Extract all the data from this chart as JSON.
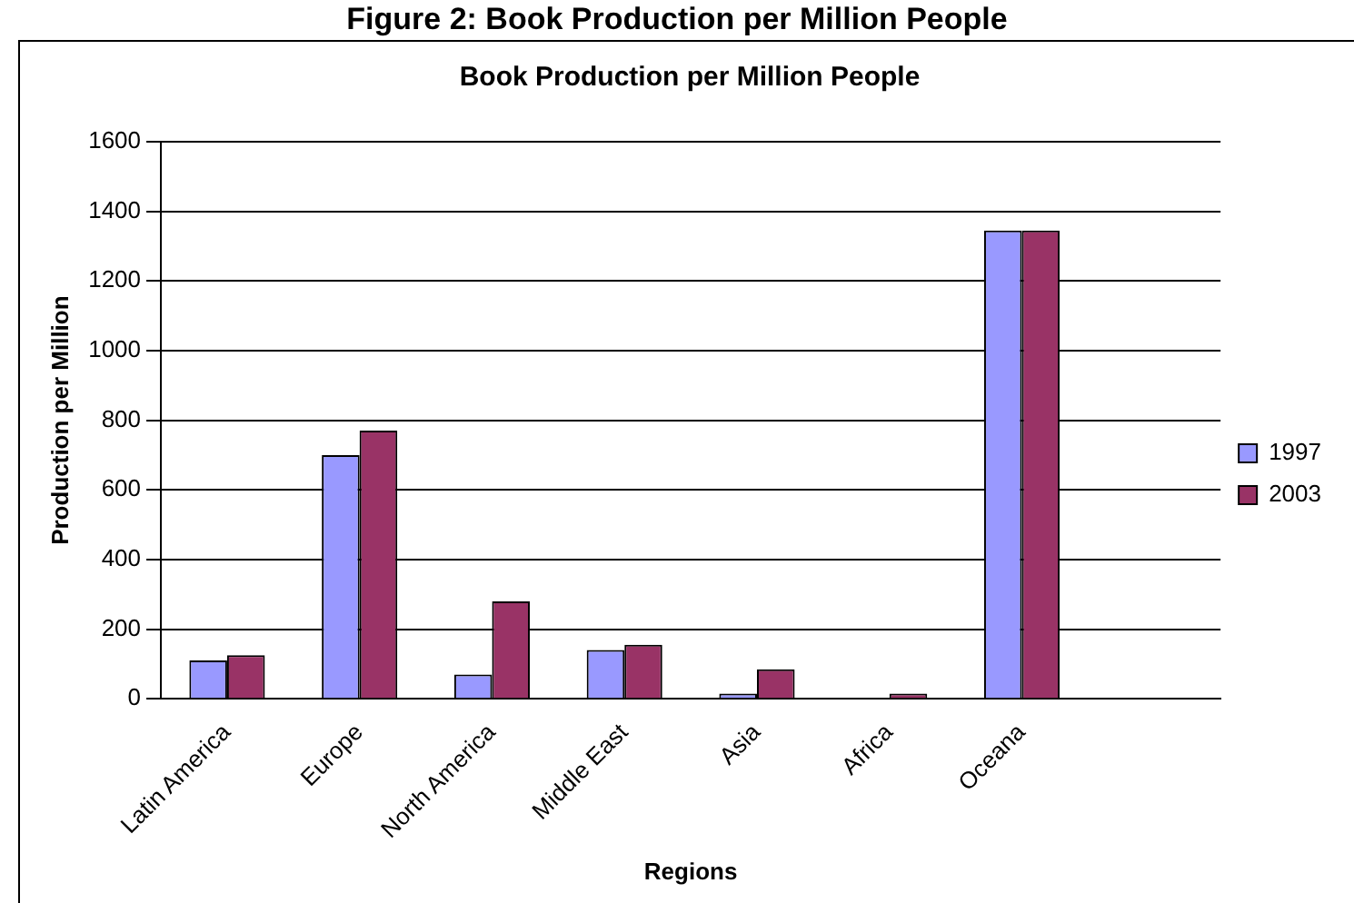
{
  "chart_data": {
    "type": "bar",
    "title": "Figure 2: Book Production per Million People",
    "subtitle": "Book Production per Million People",
    "xlabel": "Regions",
    "ylabel": "Production per Million",
    "categories": [
      "Latin America",
      "Europe",
      "North America",
      "Middle East",
      "Asia",
      "Africa",
      "Oceana",
      null
    ],
    "series": [
      {
        "name": "1997",
        "color": "#9999ff",
        "values": [
          110,
          700,
          70,
          140,
          15,
          0,
          1345,
          null
        ]
      },
      {
        "name": "2003",
        "color": "#993366",
        "values": [
          125,
          770,
          280,
          155,
          85,
          15,
          1345,
          null
        ]
      }
    ],
    "ylim": [
      0,
      1600
    ],
    "yticks": [
      0,
      200,
      400,
      600,
      800,
      1000,
      1200,
      1400,
      1600
    ],
    "grid": "y",
    "legend": "right"
  }
}
